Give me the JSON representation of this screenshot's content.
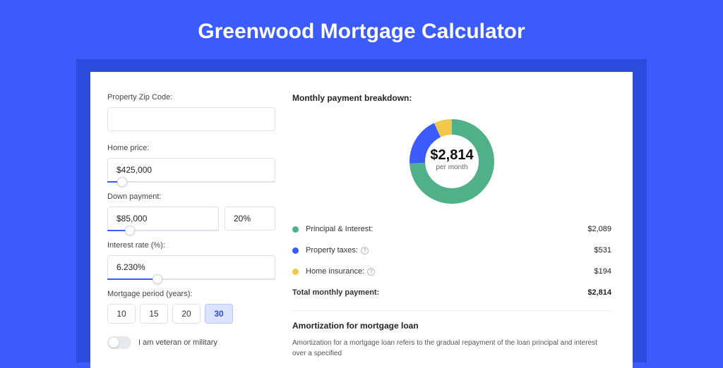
{
  "page": {
    "title": "Greenwood Mortgage Calculator",
    "background_color": "#3b5bfd",
    "band_color": "#2a4bdc",
    "card_color": "#ffffff"
  },
  "form": {
    "zip": {
      "label": "Property Zip Code:",
      "value": ""
    },
    "home_price": {
      "label": "Home price:",
      "value": "$425,000",
      "slider_pct": 9
    },
    "down_payment": {
      "label": "Down payment:",
      "value": "$85,000",
      "pct_value": "20%",
      "slider_pct": 20
    },
    "interest_rate": {
      "label": "Interest rate (%):",
      "value": "6.230%",
      "slider_pct": 30
    },
    "mortgage_period": {
      "label": "Mortgage period (years):",
      "options": [
        "10",
        "15",
        "20",
        "30"
      ],
      "active_index": 3
    },
    "veteran": {
      "label": "I am veteran or military",
      "value": false
    }
  },
  "breakdown": {
    "title": "Monthly payment breakdown:",
    "donut": {
      "amount": "$2,814",
      "sub": "per month",
      "slices": [
        {
          "label": "Principal & Interest",
          "value": 2089,
          "pct": 74.2,
          "color": "#4fb08a"
        },
        {
          "label": "Property taxes",
          "value": 531,
          "pct": 18.9,
          "color": "#3b5bfd"
        },
        {
          "label": "Home insurance",
          "value": 194,
          "pct": 6.9,
          "color": "#f0c94a"
        }
      ],
      "thickness": 22,
      "radius": 60,
      "bg": "#ffffff"
    },
    "rows": [
      {
        "label": "Principal & Interest:",
        "value": "$2,089",
        "color": "#4fb08a",
        "info": false
      },
      {
        "label": "Property taxes:",
        "value": "$531",
        "color": "#3b5bfd",
        "info": true
      },
      {
        "label": "Home insurance:",
        "value": "$194",
        "color": "#f0c94a",
        "info": true
      }
    ],
    "total": {
      "label": "Total monthly payment:",
      "value": "$2,814"
    }
  },
  "amortization": {
    "title": "Amortization for mortgage loan",
    "text": "Amortization for a mortgage loan refers to the gradual repayment of the loan principal and interest over a specified"
  }
}
